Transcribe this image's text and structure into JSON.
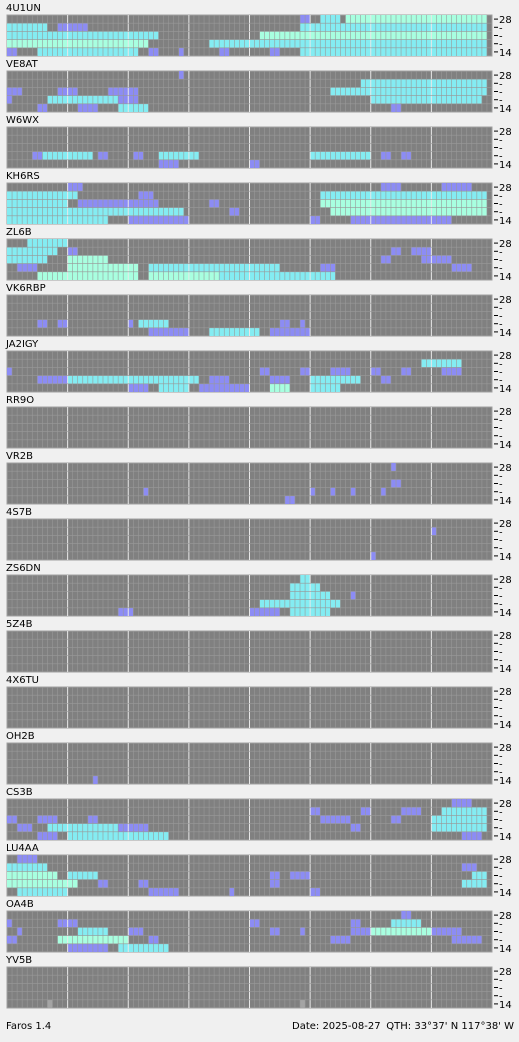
{
  "app": "Faros 1.4",
  "date": "Date: 2025-08-27",
  "qth": "QTH: 33°37' N   117°38' W",
  "band_labels": [
    "28",
    "-",
    "-",
    "-",
    "14"
  ],
  "columns": 96,
  "major_every": 12,
  "levels": {
    "1": "#8c8cf4",
    "2": "#84ecf2",
    "3": "#a8ffe0",
    "4": "#a4a4a4"
  },
  "stations": [
    {
      "name": "4U1UN",
      "rows": [
        [
          [
            58,
            2,
            1
          ],
          [
            62,
            4,
            2
          ],
          [
            67,
            28,
            3
          ]
        ],
        [
          [
            0,
            8,
            2
          ],
          [
            10,
            6,
            1
          ],
          [
            58,
            37,
            2
          ]
        ],
        [
          [
            0,
            30,
            2
          ],
          [
            50,
            45,
            3
          ]
        ],
        [
          [
            0,
            28,
            3
          ],
          [
            40,
            55,
            2
          ]
        ],
        [
          [
            0,
            2,
            1
          ],
          [
            6,
            20,
            2
          ],
          [
            28,
            2,
            1
          ],
          [
            34,
            1,
            1
          ],
          [
            42,
            2,
            1
          ],
          [
            52,
            2,
            1
          ],
          [
            58,
            37,
            2
          ]
        ]
      ]
    },
    {
      "name": "VE8AT",
      "rows": [
        [
          [
            34,
            1,
            1
          ]
        ],
        [
          [
            70,
            25,
            2
          ]
        ],
        [
          [
            0,
            3,
            1
          ],
          [
            10,
            4,
            1
          ],
          [
            20,
            6,
            1
          ],
          [
            64,
            31,
            2
          ]
        ],
        [
          [
            0,
            1,
            1
          ],
          [
            8,
            14,
            2
          ],
          [
            22,
            4,
            1
          ],
          [
            72,
            22,
            2
          ]
        ],
        [
          [
            6,
            2,
            1
          ],
          [
            14,
            4,
            1
          ],
          [
            22,
            6,
            2
          ],
          [
            76,
            2,
            1
          ]
        ]
      ]
    },
    {
      "name": "W6WX",
      "rows": [
        [],
        [],
        [],
        [
          [
            5,
            2,
            1
          ],
          [
            7,
            10,
            2
          ],
          [
            18,
            2,
            1
          ],
          [
            25,
            2,
            1
          ],
          [
            30,
            8,
            2
          ],
          [
            60,
            12,
            2
          ],
          [
            74,
            2,
            1
          ],
          [
            78,
            2,
            1
          ]
        ],
        [
          [
            30,
            4,
            1
          ],
          [
            48,
            2,
            1
          ]
        ]
      ]
    },
    {
      "name": "KH6RS",
      "rows": [
        [
          [
            12,
            3,
            1
          ],
          [
            74,
            4,
            1
          ],
          [
            86,
            6,
            1
          ]
        ],
        [
          [
            0,
            14,
            2
          ],
          [
            26,
            3,
            1
          ],
          [
            62,
            33,
            2
          ]
        ],
        [
          [
            0,
            12,
            2
          ],
          [
            14,
            16,
            1
          ],
          [
            40,
            2,
            1
          ],
          [
            62,
            33,
            3
          ]
        ],
        [
          [
            0,
            35,
            2
          ],
          [
            44,
            2,
            1
          ],
          [
            64,
            31,
            3
          ]
        ],
        [
          [
            0,
            20,
            2
          ],
          [
            24,
            12,
            1
          ],
          [
            60,
            2,
            1
          ],
          [
            68,
            20,
            1
          ]
        ]
      ]
    },
    {
      "name": "ZL6B",
      "rows": [
        [
          [
            4,
            8,
            2
          ]
        ],
        [
          [
            0,
            10,
            2
          ],
          [
            12,
            2,
            1
          ],
          [
            76,
            2,
            1
          ],
          [
            80,
            4,
            1
          ]
        ],
        [
          [
            0,
            8,
            2
          ],
          [
            12,
            8,
            3
          ],
          [
            74,
            2,
            1
          ],
          [
            82,
            6,
            1
          ]
        ],
        [
          [
            2,
            4,
            1
          ],
          [
            12,
            14,
            3
          ],
          [
            28,
            26,
            2
          ],
          [
            62,
            3,
            1
          ],
          [
            88,
            4,
            1
          ]
        ],
        [
          [
            6,
            20,
            3
          ],
          [
            28,
            14,
            3
          ],
          [
            42,
            23,
            2
          ]
        ]
      ]
    },
    {
      "name": "VK6RBP",
      "rows": [
        [],
        [],
        [],
        [
          [
            6,
            2,
            1
          ],
          [
            10,
            2,
            1
          ],
          [
            24,
            1,
            1
          ],
          [
            26,
            6,
            2
          ],
          [
            54,
            2,
            1
          ],
          [
            58,
            1,
            1
          ]
        ],
        [
          [
            28,
            8,
            1
          ],
          [
            40,
            10,
            2
          ],
          [
            52,
            8,
            1
          ]
        ]
      ]
    },
    {
      "name": "JA2IGY",
      "rows": [
        [],
        [
          [
            82,
            8,
            2
          ]
        ],
        [
          [
            0,
            1,
            1
          ],
          [
            50,
            2,
            1
          ],
          [
            58,
            2,
            1
          ],
          [
            64,
            4,
            1
          ],
          [
            72,
            2,
            1
          ],
          [
            78,
            2,
            1
          ],
          [
            86,
            4,
            1
          ]
        ],
        [
          [
            6,
            6,
            1
          ],
          [
            12,
            26,
            2
          ],
          [
            40,
            4,
            1
          ],
          [
            52,
            4,
            1
          ],
          [
            60,
            10,
            2
          ],
          [
            74,
            2,
            1
          ]
        ],
        [
          [
            24,
            4,
            1
          ],
          [
            30,
            6,
            2
          ],
          [
            38,
            10,
            1
          ],
          [
            52,
            4,
            3
          ],
          [
            60,
            6,
            2
          ]
        ]
      ]
    },
    {
      "name": "RR9O",
      "rows": [
        [],
        [],
        [],
        [],
        []
      ]
    },
    {
      "name": "VR2B",
      "rows": [
        [
          [
            76,
            1,
            1
          ]
        ],
        [],
        [
          [
            76,
            2,
            1
          ]
        ],
        [
          [
            27,
            1,
            1
          ],
          [
            60,
            1,
            1
          ],
          [
            64,
            1,
            1
          ],
          [
            68,
            1,
            1
          ],
          [
            74,
            1,
            1
          ]
        ],
        [
          [
            55,
            2,
            1
          ]
        ]
      ]
    },
    {
      "name": "4S7B",
      "rows": [
        [],
        [
          [
            84,
            1,
            1
          ]
        ],
        [],
        [],
        [
          [
            72,
            1,
            1
          ]
        ]
      ]
    },
    {
      "name": "ZS6DN",
      "rows": [
        [
          [
            58,
            2,
            2
          ]
        ],
        [
          [
            56,
            6,
            2
          ]
        ],
        [
          [
            56,
            8,
            2
          ],
          [
            68,
            1,
            1
          ]
        ],
        [
          [
            50,
            16,
            2
          ]
        ],
        [
          [
            22,
            3,
            1
          ],
          [
            48,
            6,
            1
          ],
          [
            56,
            8,
            2
          ]
        ]
      ]
    },
    {
      "name": "5Z4B",
      "rows": [
        [],
        [],
        [],
        [],
        []
      ]
    },
    {
      "name": "4X6TU",
      "rows": [
        [],
        [],
        [],
        [],
        []
      ]
    },
    {
      "name": "OH2B",
      "rows": [
        [],
        [],
        [],
        [],
        [
          [
            17,
            1,
            1
          ]
        ]
      ]
    },
    {
      "name": "CS3B",
      "rows": [
        [
          [
            88,
            4,
            1
          ]
        ],
        [
          [
            60,
            2,
            1
          ],
          [
            70,
            2,
            1
          ],
          [
            78,
            4,
            1
          ],
          [
            86,
            9,
            2
          ]
        ],
        [
          [
            0,
            2,
            1
          ],
          [
            6,
            4,
            1
          ],
          [
            16,
            2,
            1
          ],
          [
            62,
            6,
            1
          ],
          [
            76,
            2,
            1
          ],
          [
            84,
            11,
            2
          ]
        ],
        [
          [
            2,
            3,
            1
          ],
          [
            8,
            14,
            2
          ],
          [
            22,
            6,
            1
          ],
          [
            68,
            2,
            1
          ],
          [
            84,
            11,
            2
          ]
        ],
        [
          [
            6,
            4,
            1
          ],
          [
            12,
            20,
            2
          ],
          [
            90,
            4,
            1
          ]
        ]
      ]
    },
    {
      "name": "LU4AA",
      "rows": [
        [
          [
            2,
            4,
            1
          ]
        ],
        [
          [
            0,
            8,
            2
          ],
          [
            90,
            3,
            1
          ]
        ],
        [
          [
            0,
            10,
            3
          ],
          [
            12,
            6,
            2
          ],
          [
            52,
            2,
            1
          ],
          [
            56,
            4,
            1
          ],
          [
            92,
            3,
            2
          ]
        ],
        [
          [
            0,
            14,
            3
          ],
          [
            18,
            2,
            1
          ],
          [
            26,
            2,
            1
          ],
          [
            52,
            2,
            1
          ],
          [
            90,
            5,
            2
          ]
        ],
        [
          [
            2,
            10,
            2
          ],
          [
            28,
            6,
            1
          ],
          [
            44,
            1,
            1
          ],
          [
            60,
            2,
            1
          ]
        ]
      ]
    },
    {
      "name": "OA4B",
      "rows": [
        [
          [
            78,
            2,
            1
          ]
        ],
        [
          [
            0,
            1,
            1
          ],
          [
            10,
            4,
            1
          ],
          [
            48,
            2,
            1
          ],
          [
            68,
            2,
            1
          ],
          [
            76,
            6,
            2
          ]
        ],
        [
          [
            2,
            1,
            1
          ],
          [
            14,
            6,
            2
          ],
          [
            24,
            3,
            1
          ],
          [
            52,
            2,
            1
          ],
          [
            58,
            1,
            1
          ],
          [
            68,
            4,
            1
          ],
          [
            72,
            12,
            3
          ],
          [
            84,
            6,
            1
          ]
        ],
        [
          [
            0,
            2,
            1
          ],
          [
            10,
            14,
            3
          ],
          [
            28,
            2,
            1
          ],
          [
            64,
            4,
            1
          ],
          [
            88,
            6,
            1
          ]
        ],
        [
          [
            12,
            8,
            1
          ],
          [
            22,
            10,
            2
          ]
        ]
      ]
    },
    {
      "name": "YV5B",
      "rows": [
        [],
        [],
        [],
        [],
        [
          [
            8,
            1,
            4
          ],
          [
            58,
            1,
            4
          ]
        ]
      ]
    }
  ]
}
